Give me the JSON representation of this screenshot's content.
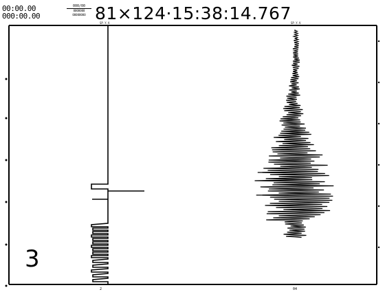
{
  "header": {
    "timecode_top": "00:00.00",
    "timecode_bottom": "000:00.00",
    "code_top": "000/00",
    "code_mid": "0000000",
    "code_bot": "00000000",
    "timestamp": "81×124·15:38:14.767"
  },
  "channels": [
    {
      "label": "SP.Y.V",
      "axis_label": "2"
    },
    {
      "label": "SP.Y.V",
      "axis_label": "04"
    }
  ],
  "panel": {
    "number": "3"
  },
  "colors": {
    "ink": "#000000",
    "paper": "#ffffff"
  }
}
